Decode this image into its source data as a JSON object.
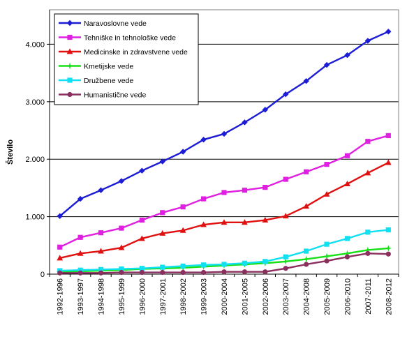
{
  "chart_data": {
    "type": "line",
    "title": "",
    "xlabel": "",
    "ylabel": "Število",
    "ylim": [
      0,
      4600
    ],
    "y_ticks": [
      {
        "value": 0,
        "label": "0"
      },
      {
        "value": 1000,
        "label": "1.000"
      },
      {
        "value": 2000,
        "label": "2.000"
      },
      {
        "value": 3000,
        "label": "3.000"
      },
      {
        "value": 4000,
        "label": "4.000"
      }
    ],
    "grid": "horizontal",
    "legend_position": "top-left",
    "categories": [
      "1992-1996",
      "1993-1997",
      "1994-1998",
      "1995-1999",
      "1996-2000",
      "1997-2001",
      "1998-2002",
      "1999-2003",
      "2000-2004",
      "2001-2005",
      "2002-2006",
      "2003-2007",
      "2004-2008",
      "2005-2009",
      "2006-2010",
      "2007-2011",
      "2008-2012"
    ],
    "series": [
      {
        "name": "Naravoslovne vede",
        "color": "#1c1cd4",
        "marker": "diamond",
        "values": [
          1010,
          1310,
          1460,
          1620,
          1800,
          1960,
          2130,
          2340,
          2440,
          2640,
          2860,
          3130,
          3360,
          3640,
          3810,
          4060,
          4220
        ]
      },
      {
        "name": "Tehniške in tehnološke vede",
        "color": "#e020e0",
        "marker": "square",
        "values": [
          470,
          640,
          720,
          800,
          940,
          1070,
          1170,
          1310,
          1420,
          1460,
          1510,
          1650,
          1780,
          1910,
          2060,
          2310,
          2410
        ]
      },
      {
        "name": "Medicinske in zdravstvene vede",
        "color": "#e01010",
        "marker": "triangle",
        "values": [
          280,
          360,
          400,
          460,
          620,
          710,
          760,
          860,
          900,
          900,
          940,
          1010,
          1180,
          1390,
          1570,
          1760,
          1940
        ]
      },
      {
        "name": "Kmetijske vede",
        "color": "#18e018",
        "marker": "star",
        "values": [
          40,
          50,
          60,
          70,
          90,
          100,
          110,
          130,
          150,
          170,
          190,
          220,
          260,
          310,
          360,
          420,
          450
        ]
      },
      {
        "name": "Družbene vede",
        "color": "#10e0f0",
        "marker": "square",
        "values": [
          60,
          70,
          80,
          90,
          100,
          120,
          140,
          160,
          170,
          190,
          220,
          300,
          400,
          520,
          620,
          730,
          770
        ]
      },
      {
        "name": "Humanistične vede",
        "color": "#8b2f5f",
        "marker": "circle",
        "values": [
          20,
          20,
          20,
          30,
          30,
          30,
          30,
          30,
          40,
          40,
          40,
          100,
          170,
          230,
          300,
          360,
          350
        ]
      }
    ]
  }
}
